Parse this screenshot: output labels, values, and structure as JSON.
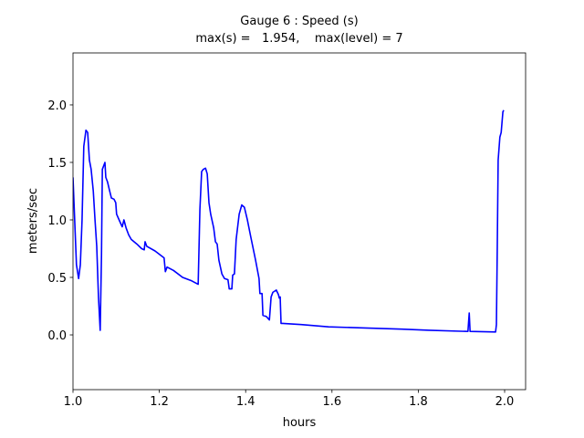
{
  "chart_data": {
    "type": "line",
    "title": "Gauge 6 : Speed (s)",
    "subtitle": "max(s) =   1.954,    max(level) = 7",
    "xlabel": "hours",
    "ylabel": "meters/sec",
    "xlim": [
      1.0,
      2.0486
    ],
    "ylim": [
      -0.476,
      2.452
    ],
    "xticks": [
      {
        "value": 1.0,
        "label": "1.0"
      },
      1.2,
      1.4,
      1.6,
      1.8,
      {
        "value": 2.0,
        "label": "2.0"
      }
    ],
    "yticks": [
      {
        "value": 0.0,
        "label": "0.0"
      },
      0.5,
      {
        "value": 1.0,
        "label": "1.0"
      },
      1.5,
      {
        "value": 2.0,
        "label": "2.0"
      }
    ],
    "grid": false,
    "x": [
      1.0,
      1.008,
      1.013,
      1.017,
      1.021,
      1.025,
      1.03,
      1.034,
      1.038,
      1.042,
      1.047,
      1.051,
      1.055,
      1.059,
      1.063,
      1.066,
      1.068,
      1.072,
      1.074,
      1.076,
      1.08,
      1.085,
      1.089,
      1.095,
      1.099,
      1.101,
      1.108,
      1.114,
      1.118,
      1.123,
      1.129,
      1.135,
      1.148,
      1.159,
      1.165,
      1.167,
      1.171,
      1.19,
      1.211,
      1.214,
      1.218,
      1.233,
      1.254,
      1.275,
      1.29,
      1.294,
      1.298,
      1.302,
      1.307,
      1.311,
      1.315,
      1.319,
      1.326,
      1.33,
      1.334,
      1.338,
      1.345,
      1.351,
      1.359,
      1.362,
      1.368,
      1.37,
      1.374,
      1.378,
      1.385,
      1.391,
      1.397,
      1.404,
      1.412,
      1.423,
      1.431,
      1.433,
      1.438,
      1.44,
      1.448,
      1.455,
      1.459,
      1.463,
      1.471,
      1.476,
      1.478,
      1.48,
      1.482,
      1.486,
      1.529,
      1.592,
      1.677,
      1.761,
      1.825,
      1.915,
      1.918,
      1.92,
      1.979,
      1.981,
      1.983,
      1.985,
      1.989,
      1.992,
      1.996,
      1.998
    ],
    "series": [
      {
        "name": "s",
        "color": "#0000ff",
        "values": [
          1.37,
          0.61,
          0.49,
          0.61,
          1.0,
          1.64,
          1.78,
          1.76,
          1.52,
          1.44,
          1.25,
          1.0,
          0.77,
          0.33,
          0.04,
          0.69,
          1.44,
          1.48,
          1.5,
          1.37,
          1.33,
          1.25,
          1.19,
          1.18,
          1.15,
          1.05,
          0.99,
          0.94,
          1.0,
          0.93,
          0.87,
          0.83,
          0.79,
          0.75,
          0.74,
          0.81,
          0.77,
          0.73,
          0.67,
          0.55,
          0.59,
          0.56,
          0.5,
          0.47,
          0.44,
          1.09,
          1.42,
          1.44,
          1.45,
          1.4,
          1.15,
          1.05,
          0.93,
          0.81,
          0.79,
          0.65,
          0.53,
          0.49,
          0.48,
          0.4,
          0.4,
          0.52,
          0.53,
          0.83,
          1.05,
          1.13,
          1.11,
          1.0,
          0.85,
          0.65,
          0.49,
          0.36,
          0.36,
          0.17,
          0.16,
          0.13,
          0.33,
          0.37,
          0.39,
          0.35,
          0.32,
          0.33,
          0.1,
          0.1,
          0.09,
          0.07,
          0.06,
          0.05,
          0.04,
          0.03,
          0.19,
          0.03,
          0.025,
          0.09,
          0.77,
          1.52,
          1.72,
          1.76,
          1.94,
          1.954
        ]
      }
    ]
  }
}
